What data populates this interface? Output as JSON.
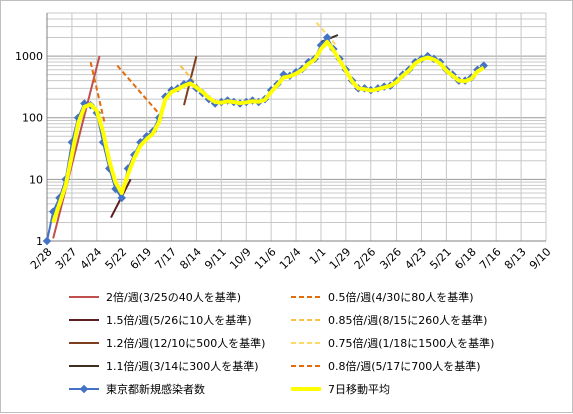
{
  "chart_data": {
    "type": "line",
    "y_scale": "log",
    "ylim": [
      1,
      5000
    ],
    "y_ticks": [
      "1",
      "10",
      "100",
      "1000"
    ],
    "x_ticks": [
      "2/28",
      "3/27",
      "4/24",
      "5/22",
      "6/19",
      "7/17",
      "8/14",
      "9/11",
      "10/9",
      "11/6",
      "12/4",
      "1/1",
      "1/29",
      "2/26",
      "3/26",
      "4/23",
      "5/21",
      "6/18",
      "7/16",
      "8/13",
      "9/10"
    ],
    "grid": true,
    "legend_position": "bottom",
    "series": [
      {
        "name": "東京都新規感染者数",
        "color": "#4472c4",
        "x": [
          "2/28",
          "3/6",
          "3/13",
          "3/20",
          "3/27",
          "4/3",
          "4/10",
          "4/17",
          "4/24",
          "5/1",
          "5/8",
          "5/15",
          "5/22",
          "5/29",
          "6/5",
          "6/12",
          "6/19",
          "6/26",
          "7/3",
          "7/10",
          "7/17",
          "7/24",
          "7/31",
          "8/7",
          "8/14",
          "8/21",
          "8/28",
          "9/4",
          "9/11",
          "9/18",
          "9/25",
          "10/2",
          "10/9",
          "10/16",
          "10/23",
          "10/30",
          "11/6",
          "11/13",
          "11/20",
          "11/27",
          "12/4",
          "12/11",
          "12/18",
          "12/25",
          "1/1",
          "1/8",
          "1/15",
          "1/22",
          "1/29",
          "2/5",
          "2/12",
          "2/19",
          "2/26",
          "3/5",
          "3/12",
          "3/19",
          "3/26",
          "4/2",
          "4/9",
          "4/16",
          "4/23",
          "4/30",
          "5/7",
          "5/14",
          "5/21",
          "5/28",
          "6/4",
          "6/11",
          "6/18",
          "6/25",
          "7/2"
        ],
        "values": [
          1,
          3,
          5,
          10,
          40,
          100,
          170,
          160,
          120,
          40,
          15,
          7,
          5,
          15,
          25,
          40,
          50,
          60,
          100,
          220,
          280,
          300,
          350,
          380,
          300,
          250,
          200,
          170,
          180,
          190,
          180,
          170,
          180,
          190,
          180,
          200,
          280,
          350,
          500,
          480,
          550,
          620,
          800,
          900,
          1500,
          2000,
          1300,
          900,
          600,
          400,
          300,
          300,
          280,
          300,
          320,
          330,
          400,
          500,
          600,
          800,
          900,
          1000,
          900,
          800,
          600,
          500,
          400,
          400,
          450,
          600,
          700
        ]
      },
      {
        "name": "7日移動平均",
        "color": "#ffff00",
        "x": [
          "3/6",
          "3/13",
          "3/20",
          "3/27",
          "4/3",
          "4/10",
          "4/17",
          "4/24",
          "5/1",
          "5/8",
          "5/15",
          "5/22",
          "5/29",
          "6/5",
          "6/12",
          "6/19",
          "6/26",
          "7/3",
          "7/10",
          "7/17",
          "7/24",
          "7/31",
          "8/7",
          "8/14",
          "8/21",
          "8/28",
          "9/4",
          "9/11",
          "9/18",
          "9/25",
          "10/2",
          "10/9",
          "10/16",
          "10/23",
          "10/30",
          "11/6",
          "11/13",
          "11/20",
          "11/27",
          "12/4",
          "12/11",
          "12/18",
          "12/25",
          "1/1",
          "1/8",
          "1/15",
          "1/22",
          "1/29",
          "2/5",
          "2/12",
          "2/19",
          "2/26",
          "3/5",
          "3/12",
          "3/19",
          "3/26",
          "4/2",
          "4/9",
          "4/16",
          "4/23",
          "4/30",
          "5/7",
          "5/14",
          "5/21",
          "5/28",
          "6/4",
          "6/11",
          "6/18",
          "6/25",
          "7/2"
        ],
        "values": [
          2,
          4,
          8,
          25,
          80,
          150,
          165,
          130,
          60,
          20,
          9,
          6,
          12,
          22,
          35,
          45,
          55,
          85,
          200,
          260,
          290,
          330,
          360,
          310,
          260,
          210,
          180,
          175,
          185,
          180,
          172,
          178,
          185,
          182,
          195,
          260,
          340,
          450,
          470,
          520,
          600,
          750,
          880,
          1300,
          1700,
          1250,
          850,
          580,
          390,
          300,
          290,
          275,
          290,
          310,
          330,
          380,
          480,
          580,
          760,
          880,
          950,
          880,
          760,
          580,
          480,
          400,
          390,
          430,
          560,
          650
        ]
      },
      {
        "name": "2倍/週(3/25の40人を基準)",
        "color": "#c0504d",
        "dash": "solid",
        "x": [
          "3/6",
          "4/27"
        ],
        "values": [
          1.1,
          1000
        ]
      },
      {
        "name": "1.5倍/週(5/26に10人を基準)",
        "color": "#5c1f1f",
        "dash": "solid",
        "x": [
          "5/10",
          "6/1"
        ],
        "values": [
          2.4,
          10
        ]
      },
      {
        "name": "1.2倍/週(12/10に500人を基準)",
        "color": "#7f3f1f",
        "dash": "solid",
        "x": [
          "7/31",
          "8/14"
        ],
        "values": [
          160,
          1000
        ]
      },
      {
        "name": "1.1倍/週(3/14に300人を基準)",
        "color": "#3f2f1f",
        "dash": "solid",
        "x": [
          "1/1",
          "1/20"
        ],
        "values": [
          1700,
          2200
        ]
      },
      {
        "name": "0.5倍/週(4/30に80人を基準)",
        "color": "#e36c0a",
        "dash": "dashed",
        "x": [
          "4/17",
          "5/3"
        ],
        "values": [
          800,
          80
        ]
      },
      {
        "name": "0.85倍/週(8/15に260人を基準)",
        "color": "#f7c243",
        "dash": "dashed",
        "x": [
          "7/27",
          "8/22"
        ],
        "values": [
          700,
          250
        ]
      },
      {
        "name": "0.75倍/週(1/18に1500人を基準)",
        "color": "#ffd966",
        "dash": "dashed",
        "x": [
          "12/27",
          "1/18"
        ],
        "values": [
          3500,
          1500
        ]
      },
      {
        "name": "0.8倍/週(5/17に700人を基準)",
        "color": "#e36c0a",
        "dash": "dashed",
        "x": [
          "5/17",
          "7/2"
        ],
        "values": [
          700,
          120
        ]
      }
    ]
  }
}
